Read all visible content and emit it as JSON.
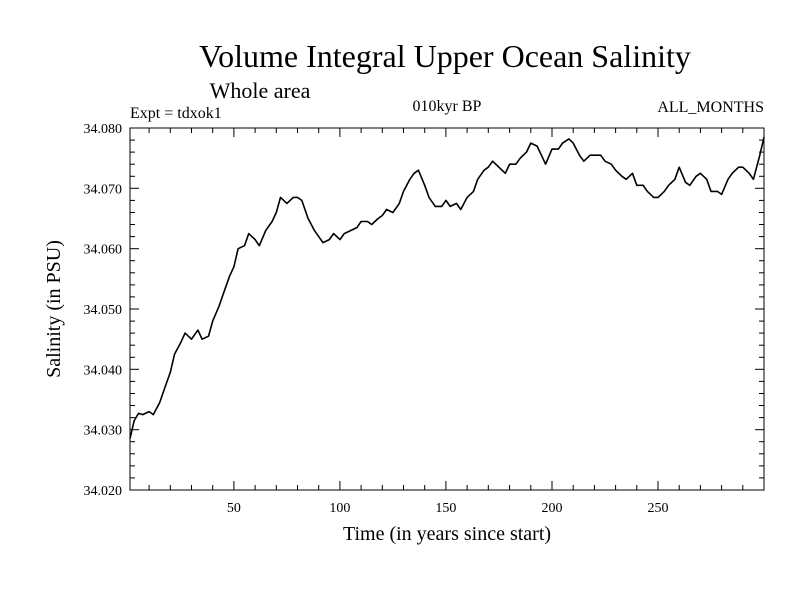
{
  "chart_data": {
    "type": "line",
    "title": "Volume Integral Upper Ocean Salinity",
    "subtitle": "Whole area",
    "expt_label": "Expt = tdxok1",
    "period_label": "010kyr BP",
    "months_label": "ALL_MONTHS",
    "xlabel": "Time (in years since start)",
    "ylabel": "Salinity (in PSU)",
    "xlim": [
      1,
      300
    ],
    "ylim": [
      34.02,
      34.08
    ],
    "xticks": [
      50,
      100,
      150,
      200,
      250
    ],
    "yticks": [
      34.02,
      34.03,
      34.04,
      34.05,
      34.06,
      34.07,
      34.08
    ],
    "ytick_labels": [
      "34.020",
      "34.030",
      "34.040",
      "34.050",
      "34.060",
      "34.070",
      "34.080"
    ],
    "series": [
      {
        "name": "salinity",
        "x": [
          1,
          3,
          5,
          7,
          10,
          12,
          15,
          18,
          20,
          22,
          25,
          27,
          30,
          33,
          35,
          38,
          40,
          43,
          45,
          48,
          50,
          52,
          55,
          57,
          60,
          62,
          65,
          68,
          70,
          72,
          75,
          78,
          80,
          82,
          85,
          88,
          90,
          92,
          95,
          97,
          100,
          102,
          105,
          108,
          110,
          113,
          115,
          118,
          120,
          122,
          125,
          128,
          130,
          133,
          135,
          137,
          140,
          142,
          145,
          148,
          150,
          152,
          155,
          157,
          160,
          163,
          165,
          168,
          170,
          172,
          175,
          178,
          180,
          183,
          185,
          188,
          190,
          193,
          195,
          197,
          200,
          203,
          205,
          208,
          210,
          213,
          215,
          218,
          220,
          223,
          225,
          228,
          230,
          233,
          235,
          238,
          240,
          243,
          245,
          248,
          250,
          253,
          255,
          258,
          260,
          263,
          265,
          268,
          270,
          273,
          275,
          278,
          280,
          283,
          285,
          288,
          290,
          293,
          295,
          298,
          300
        ],
        "values": [
          34.0285,
          34.0315,
          34.0327,
          34.0325,
          34.033,
          34.0325,
          34.0345,
          34.0375,
          34.0395,
          34.0425,
          34.0445,
          34.046,
          34.045,
          34.0465,
          34.045,
          34.0455,
          34.048,
          34.0505,
          34.0525,
          34.0555,
          34.057,
          34.06,
          34.0605,
          34.0625,
          34.0615,
          34.0605,
          34.063,
          34.0645,
          34.066,
          34.0685,
          34.0675,
          34.0685,
          34.0685,
          34.068,
          34.065,
          34.063,
          34.062,
          34.061,
          34.0615,
          34.0625,
          34.0615,
          34.0625,
          34.063,
          34.0635,
          34.0645,
          34.0645,
          34.064,
          34.065,
          34.0655,
          34.0665,
          34.066,
          34.0675,
          34.0695,
          34.0715,
          34.0725,
          34.073,
          34.0705,
          34.0685,
          34.067,
          34.067,
          34.068,
          34.067,
          34.0675,
          34.0665,
          34.0685,
          34.0695,
          34.0715,
          34.073,
          34.0735,
          34.0745,
          34.0735,
          34.0725,
          34.074,
          34.074,
          34.075,
          34.076,
          34.0775,
          34.077,
          34.0755,
          34.074,
          34.0765,
          34.0765,
          34.0775,
          34.0782,
          34.0775,
          34.0755,
          34.0745,
          34.0755,
          34.0755,
          34.0755,
          34.0745,
          34.074,
          34.073,
          34.072,
          34.0715,
          34.0725,
          34.0705,
          34.0705,
          34.0695,
          34.0685,
          34.0685,
          34.0695,
          34.0705,
          34.0715,
          34.0735,
          34.071,
          34.0705,
          34.072,
          34.0725,
          34.0715,
          34.0695,
          34.0695,
          34.069,
          34.0715,
          34.0725,
          34.0735,
          34.0735,
          34.0725,
          34.0715,
          34.0755,
          34.0785
        ]
      }
    ]
  }
}
